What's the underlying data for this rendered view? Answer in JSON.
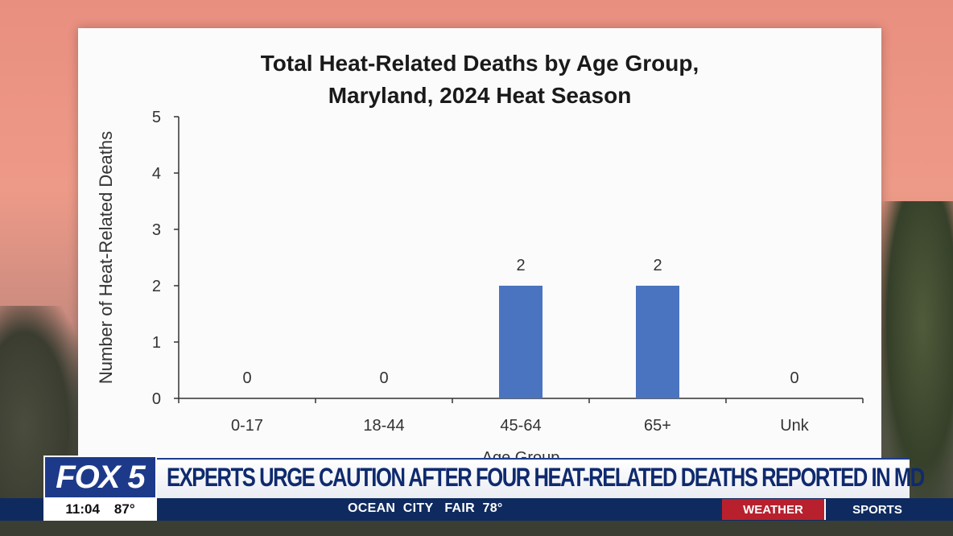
{
  "chart_data": {
    "type": "bar",
    "title_line1": "Total Heat-Related Deaths by Age Group,",
    "title_line2": "Maryland, 2024 Heat Season",
    "xlabel": "Age Group",
    "ylabel": "Number of Heat-Related Deaths",
    "categories": [
      "0-17",
      "18-44",
      "45-64",
      "65+",
      "Unk"
    ],
    "values": [
      0,
      0,
      2,
      2,
      0
    ],
    "ylim": [
      0,
      5
    ],
    "yticks": [
      0,
      1,
      2,
      3,
      4,
      5
    ],
    "bar_color": "#4a74c0",
    "grid": false
  },
  "broadcast": {
    "logo": "FOX 5",
    "headline": "EXPERTS URGE CAUTION AFTER FOUR HEAT-RELATED DEATHS REPORTED IN MD",
    "time": "11:04",
    "temp": "87°",
    "ticker": "OCEAN  CITY   FAIR  78°",
    "weather_label": "WEATHER",
    "sports_label": "SPORTS"
  }
}
